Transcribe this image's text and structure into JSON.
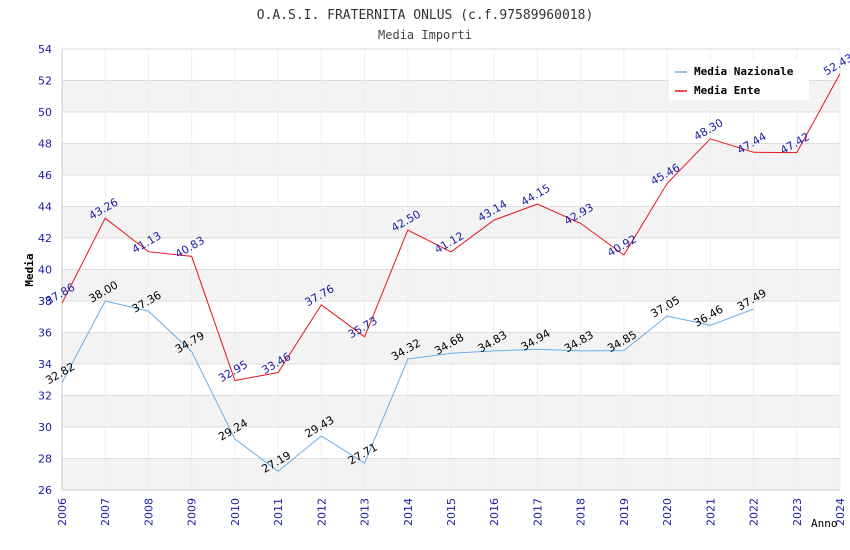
{
  "chart_data": {
    "type": "line",
    "title": "O.A.S.I. FRATERNITA ONLUS (c.f.97589960018)",
    "subtitle": "Media Importi",
    "xlabel": "Anno",
    "ylabel": "Media",
    "ylim": [
      26,
      54
    ],
    "yticks": [
      "26",
      "28",
      "30",
      "32",
      "34",
      "36",
      "38",
      "40",
      "42",
      "44",
      "46",
      "48",
      "50",
      "52",
      "54"
    ],
    "categories": [
      "2006",
      "2007",
      "2008",
      "2009",
      "2010",
      "2011",
      "2012",
      "2013",
      "2014",
      "2015",
      "2016",
      "2017",
      "2018",
      "2019",
      "2020",
      "2021",
      "2022",
      "2023",
      "2024"
    ],
    "legend_position": "top-right",
    "series": [
      {
        "name": "Media Nazionale",
        "color": "#6aaee8",
        "label_color": "#000000",
        "values": [
          32.82,
          38.0,
          37.36,
          34.79,
          29.24,
          27.19,
          29.43,
          27.71,
          34.32,
          34.68,
          34.83,
          34.94,
          34.83,
          34.85,
          37.05,
          36.46,
          37.49,
          null,
          null
        ],
        "labels": [
          "32.82",
          "38.00",
          "37.36",
          "34.79",
          "29.24",
          "27.19",
          "29.43",
          "27.71",
          "34.32",
          "34.68",
          "34.83",
          "34.94",
          "34.83",
          "34.85",
          "37.05",
          "36.46",
          "37.49",
          null,
          null
        ]
      },
      {
        "name": "Media Ente",
        "color": "#e8141e",
        "label_color": "#1a1aa6",
        "values": [
          37.86,
          43.26,
          41.13,
          40.83,
          32.95,
          33.46,
          37.76,
          35.73,
          42.5,
          41.12,
          43.14,
          44.15,
          42.93,
          40.92,
          45.46,
          48.3,
          47.44,
          47.42,
          52.43
        ],
        "labels": [
          "37.86",
          "43.26",
          "41.13",
          "40.83",
          "32.95",
          "33.46",
          "37.76",
          "35.73",
          "42.50",
          "41.12",
          "43.14",
          "44.15",
          "42.93",
          "40.92",
          "45.46",
          "48.30",
          "47.44",
          "47.42",
          "52.43"
        ]
      }
    ]
  }
}
